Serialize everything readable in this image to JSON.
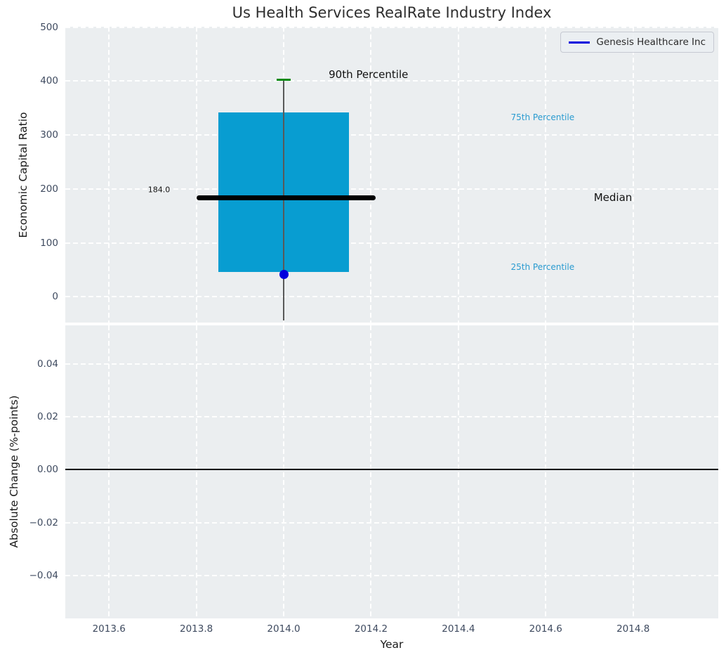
{
  "title": "Us Health Services RealRate Industry Index",
  "chart_data": [
    {
      "type": "box",
      "title": "Us Health Services RealRate Industry Index",
      "ylabel": "Economic Capital Ratio",
      "xlim": [
        2013.5,
        2014.995
      ],
      "ylim": [
        -48,
        501
      ],
      "xticks": [
        2013.6,
        2013.8,
        2014.0,
        2014.2,
        2014.4,
        2014.6,
        2014.8
      ],
      "yticks": [
        0,
        100,
        200,
        300,
        400,
        500
      ],
      "ytick_labels": [
        "0",
        "100",
        "200",
        "300",
        "400",
        "500"
      ],
      "grid": "white-dashed",
      "legend_position": "upper-right",
      "values": {
        "p90": 402,
        "p75": 342,
        "median": 184.0,
        "p25": 46,
        "whisker_low": -44,
        "company_value": 41
      },
      "geometry": {
        "center_x": 2014.0,
        "box_halfwidth": 0.15,
        "cap_halfwidth": 0.016,
        "median_x_start": 2013.8,
        "median_x_end": 2014.21
      },
      "annotations": [
        {
          "text": "184.0",
          "x": 2013.74,
          "y": 199,
          "align": "right",
          "size": 11,
          "color": "#111111"
        },
        {
          "text": "90th Percentile",
          "x": 2014.103,
          "y": 412,
          "align": "left",
          "size": 15,
          "color": "#111111"
        },
        {
          "text": "75th Percentile",
          "x": 2014.52,
          "y": 333,
          "align": "left",
          "size": 12,
          "color": "#2a9bd0"
        },
        {
          "text": "Median",
          "x": 2014.71,
          "y": 184,
          "align": "left",
          "size": 15,
          "color": "#111111"
        },
        {
          "text": "25th Percentile",
          "x": 2014.52,
          "y": 55,
          "align": "left",
          "size": 12,
          "color": "#2a9bd0"
        }
      ],
      "legend": {
        "label": "Genesis Healthcare Inc",
        "line_color": "#0000dd"
      },
      "colors": {
        "box_fill": "#089dd1",
        "median": "#000000",
        "whisker": "#595959",
        "cap": "#0b8a16",
        "point": "#0000dd",
        "axes_bg": "#ebeef0",
        "grid": "#ffffff"
      }
    },
    {
      "type": "line",
      "ylabel": "Absolute Change (%-points)",
      "xlabel": "Year",
      "xlim": [
        2013.5,
        2014.995
      ],
      "ylim": [
        -0.0562,
        0.0546
      ],
      "xticks": [
        2013.6,
        2013.8,
        2014.0,
        2014.2,
        2014.4,
        2014.6,
        2014.8
      ],
      "xtick_labels": [
        "2013.6",
        "2013.8",
        "2014.0",
        "2014.2",
        "2014.4",
        "2014.6",
        "2014.8"
      ],
      "yticks": [
        0.04,
        0.02,
        0.0,
        -0.02,
        -0.04
      ],
      "ytick_labels": [
        "0.04",
        "0.02",
        "0.00",
        "−0.02",
        "−0.04"
      ],
      "zero_line": 0.0,
      "series": []
    }
  ]
}
